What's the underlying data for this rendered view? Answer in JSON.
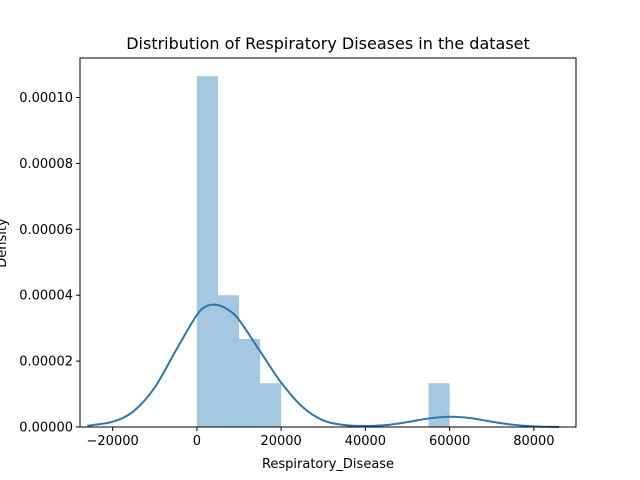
{
  "chart_data": {
    "type": "histogram",
    "title": "Distribution of Respiratory Diseases in the dataset",
    "xlabel": "Respiratory_Disease",
    "ylabel": "Density",
    "xlim": [
      -27750,
      90000
    ],
    "ylim": [
      0,
      0.000112
    ],
    "x_ticks": [
      {
        "value": -20000,
        "label": "−20000"
      },
      {
        "value": 0,
        "label": "0"
      },
      {
        "value": 20000,
        "label": "20000"
      },
      {
        "value": 40000,
        "label": "40000"
      },
      {
        "value": 60000,
        "label": "60000"
      },
      {
        "value": 80000,
        "label": "80000"
      }
    ],
    "y_ticks": [
      {
        "value": 0,
        "label": "0.00000"
      },
      {
        "value": 2e-05,
        "label": "0.00002"
      },
      {
        "value": 4e-05,
        "label": "0.00004"
      },
      {
        "value": 6e-05,
        "label": "0.00006"
      },
      {
        "value": 8e-05,
        "label": "0.00008"
      },
      {
        "value": 0.0001,
        "label": "0.00010"
      }
    ],
    "bins": [
      {
        "x0": 0,
        "x1": 5000,
        "density": 0.0001065
      },
      {
        "x0": 5000,
        "x1": 10000,
        "density": 4e-05
      },
      {
        "x0": 10000,
        "x1": 15000,
        "density": 2.67e-05
      },
      {
        "x0": 15000,
        "x1": 20000,
        "density": 1.33e-05
      },
      {
        "x0": 55000,
        "x1": 60000,
        "density": 1.33e-05
      }
    ],
    "kde": {
      "x": [
        -26000,
        -20000,
        -15000,
        -10000,
        -5000,
        0,
        2500,
        5000,
        7500,
        10000,
        15000,
        20000,
        25000,
        30000,
        35000,
        40000,
        45000,
        50000,
        55000,
        60000,
        65000,
        70000,
        75000,
        80000,
        86000
      ],
      "y": [
        4e-07,
        1.6e-06,
        4.8e-06,
        1.2e-05,
        2.32e-05,
        3.4e-05,
        3.68e-05,
        3.7e-05,
        3.55e-05,
        3.25e-05,
        2.3e-05,
        1.35e-05,
        6.2e-06,
        2e-06,
        6e-07,
        3e-07,
        6e-07,
        1.5e-06,
        2.6e-06,
        3.1e-06,
        2.7e-06,
        1.6e-06,
        7e-07,
        2e-07,
        0.0
      ]
    },
    "colors": {
      "bar": "#a4c8e0",
      "line": "#2a77b4"
    },
    "grid": false
  }
}
